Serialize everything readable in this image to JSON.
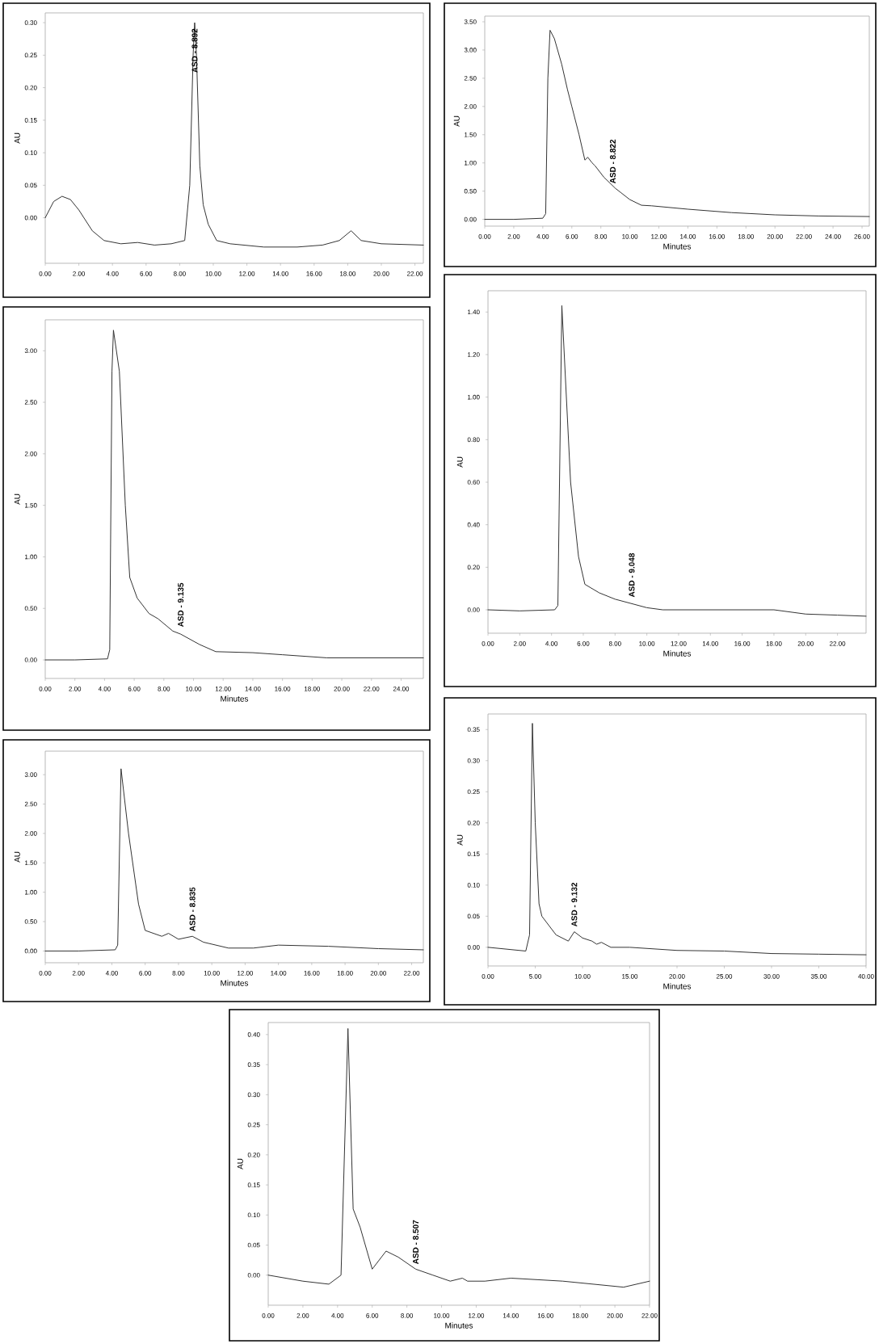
{
  "chart_data": [
    {
      "type": "line",
      "ylabel": "AU",
      "color": "#333333",
      "x": [
        0,
        0.5,
        1.0,
        1.5,
        2.0,
        2.8,
        3.5,
        4.5,
        5.5,
        6.5,
        7.5,
        8.3,
        8.6,
        8.8,
        8.892,
        9.0,
        9.2,
        9.4,
        9.7,
        10.2,
        11,
        13,
        15,
        16.5,
        17.5,
        18.2,
        18.8,
        20,
        22.5
      ],
      "values": [
        0.0,
        0.025,
        0.033,
        0.028,
        0.012,
        -0.02,
        -0.035,
        -0.04,
        -0.038,
        -0.042,
        -0.04,
        -0.035,
        0.05,
        0.25,
        0.3,
        0.25,
        0.08,
        0.02,
        -0.01,
        -0.035,
        -0.04,
        -0.045,
        -0.045,
        -0.042,
        -0.035,
        -0.02,
        -0.035,
        -0.04,
        -0.042
      ],
      "xlim": [
        0,
        22.5
      ],
      "ylim": [
        -0.07,
        0.315
      ],
      "xticks": [
        {
          "value": 0,
          "label": "0.00"
        },
        {
          "value": 2,
          "label": "2.00"
        },
        {
          "value": 4,
          "label": "4.00"
        },
        {
          "value": 6,
          "label": "6.00"
        },
        {
          "value": 8,
          "label": "8.00"
        },
        {
          "value": 10,
          "label": "10.00"
        },
        {
          "value": 12,
          "label": "12.00"
        },
        {
          "value": 14,
          "label": "14.00"
        },
        {
          "value": 16,
          "label": "16.00"
        },
        {
          "value": 18,
          "label": "18.00"
        },
        {
          "value": 20,
          "label": "20.00"
        },
        {
          "value": 22,
          "label": "22.00"
        }
      ],
      "yticks": [
        {
          "value": 0,
          "label": "0.00"
        },
        {
          "value": 0.05,
          "label": "0.05"
        },
        {
          "value": 0.1,
          "label": "0.10"
        },
        {
          "value": 0.15,
          "label": "0.15"
        },
        {
          "value": 0.2,
          "label": "0.20"
        },
        {
          "value": 0.25,
          "label": "0.25"
        },
        {
          "value": 0.3,
          "label": "0.30"
        }
      ],
      "annotations": [
        {
          "text": "ASD - 8.892",
          "x": 8.892,
          "y": 0.22
        }
      ]
    },
    {
      "type": "line",
      "xlabel": "Minutes",
      "ylabel": "AU",
      "color": "#333333",
      "x": [
        0,
        2,
        4.0,
        4.2,
        4.35,
        4.5,
        4.8,
        5.3,
        5.7,
        6.0,
        6.5,
        6.9,
        7.1,
        7.4,
        7.6,
        8.2,
        9.0,
        9.4,
        10,
        10.8,
        11.5,
        14,
        17,
        20,
        23,
        26.5
      ],
      "values": [
        0,
        0,
        0.02,
        0.1,
        2.5,
        3.35,
        3.2,
        2.75,
        2.3,
        2.0,
        1.5,
        1.05,
        1.1,
        1.0,
        0.95,
        0.75,
        0.55,
        0.47,
        0.35,
        0.25,
        0.24,
        0.18,
        0.12,
        0.08,
        0.06,
        0.05
      ],
      "xlim": [
        0,
        26.5
      ],
      "ylim": [
        -0.12,
        3.6
      ],
      "xticks": [
        {
          "value": 0,
          "label": "0.00"
        },
        {
          "value": 2,
          "label": "2.00"
        },
        {
          "value": 4,
          "label": "4.00"
        },
        {
          "value": 6,
          "label": "6.00"
        },
        {
          "value": 8,
          "label": "8.00"
        },
        {
          "value": 10,
          "label": "10.00"
        },
        {
          "value": 12,
          "label": "12.00"
        },
        {
          "value": 14,
          "label": "14.00"
        },
        {
          "value": 16,
          "label": "16.00"
        },
        {
          "value": 18,
          "label": "18.00"
        },
        {
          "value": 20,
          "label": "20.00"
        },
        {
          "value": 22,
          "label": "22.00"
        },
        {
          "value": 24,
          "label": "24.00"
        },
        {
          "value": 26,
          "label": "26.00"
        }
      ],
      "yticks": [
        {
          "value": 0,
          "label": "0.00"
        },
        {
          "value": 0.5,
          "label": "0.50"
        },
        {
          "value": 1,
          "label": "1.00"
        },
        {
          "value": 1.5,
          "label": "1.50"
        },
        {
          "value": 2,
          "label": "2.00"
        },
        {
          "value": 2.5,
          "label": "2.50"
        },
        {
          "value": 3,
          "label": "3.00"
        },
        {
          "value": 3.5,
          "label": "3.50"
        }
      ],
      "annotations": [
        {
          "text": "ASD - 8.822",
          "x": 8.822,
          "y": 0.6
        }
      ]
    },
    {
      "type": "line",
      "xlabel": "Minutes",
      "ylabel": "AU",
      "color": "#333333",
      "x": [
        0,
        2,
        4.2,
        4.35,
        4.5,
        4.6,
        5.0,
        5.4,
        5.7,
        6.2,
        7.0,
        7.6,
        8.6,
        9.135,
        10.4,
        11.5,
        14,
        16,
        19,
        22,
        25.5
      ],
      "values": [
        0,
        0,
        0.01,
        0.1,
        2.8,
        3.2,
        2.8,
        1.5,
        0.8,
        0.6,
        0.45,
        0.4,
        0.28,
        0.25,
        0.15,
        0.08,
        0.07,
        0.05,
        0.02,
        0.02,
        0.02
      ],
      "xlim": [
        0,
        25.5
      ],
      "ylim": [
        -0.18,
        3.3
      ],
      "xticks": [
        {
          "value": 0,
          "label": "0.00"
        },
        {
          "value": 2,
          "label": "2.00"
        },
        {
          "value": 4,
          "label": "4.00"
        },
        {
          "value": 6,
          "label": "6.00"
        },
        {
          "value": 8,
          "label": "8.00"
        },
        {
          "value": 10,
          "label": "10.00"
        },
        {
          "value": 12,
          "label": "12.00"
        },
        {
          "value": 14,
          "label": "14.00"
        },
        {
          "value": 16,
          "label": "16.00"
        },
        {
          "value": 18,
          "label": "18.00"
        },
        {
          "value": 20,
          "label": "20.00"
        },
        {
          "value": 22,
          "label": "22.00"
        },
        {
          "value": 24,
          "label": "24.00"
        }
      ],
      "yticks": [
        {
          "value": 0,
          "label": "0.00"
        },
        {
          "value": 0.5,
          "label": "0.50"
        },
        {
          "value": 1,
          "label": "1.00"
        },
        {
          "value": 1.5,
          "label": "1.50"
        },
        {
          "value": 2,
          "label": "2.00"
        },
        {
          "value": 2.5,
          "label": "2.50"
        },
        {
          "value": 3,
          "label": "3.00"
        }
      ],
      "annotations": [
        {
          "text": "ASD - 9.135",
          "x": 9.135,
          "y": 0.3
        }
      ]
    },
    {
      "type": "line",
      "xlabel": "Minutes",
      "ylabel": "AU",
      "color": "#333333",
      "x": [
        0,
        2,
        4.2,
        4.4,
        4.65,
        5.2,
        5.7,
        6.1,
        7,
        8,
        9,
        10,
        11,
        14,
        16,
        18,
        20,
        22,
        23.8
      ],
      "values": [
        0,
        -0.005,
        0,
        0.02,
        1.43,
        0.6,
        0.25,
        0.12,
        0.08,
        0.05,
        0.03,
        0.01,
        0,
        0,
        0,
        0,
        -0.02,
        -0.025,
        -0.03
      ],
      "xlim": [
        0,
        23.8
      ],
      "ylim": [
        -0.11,
        1.5
      ],
      "xticks": [
        {
          "value": 0,
          "label": "0.00"
        },
        {
          "value": 2,
          "label": "2.00"
        },
        {
          "value": 4,
          "label": "4.00"
        },
        {
          "value": 6,
          "label": "6.00"
        },
        {
          "value": 8,
          "label": "8.00"
        },
        {
          "value": 10,
          "label": "10.00"
        },
        {
          "value": 12,
          "label": "12.00"
        },
        {
          "value": 14,
          "label": "14.00"
        },
        {
          "value": 16,
          "label": "16.00"
        },
        {
          "value": 18,
          "label": "18.00"
        },
        {
          "value": 20,
          "label": "20.00"
        },
        {
          "value": 22,
          "label": "22.00"
        }
      ],
      "yticks": [
        {
          "value": 0,
          "label": "0.00"
        },
        {
          "value": 0.2,
          "label": "0.20"
        },
        {
          "value": 0.4,
          "label": "0.40"
        },
        {
          "value": 0.6,
          "label": "0.60"
        },
        {
          "value": 0.8,
          "label": "0.80"
        },
        {
          "value": 1,
          "label": "1.00"
        },
        {
          "value": 1.2,
          "label": "1.20"
        },
        {
          "value": 1.4,
          "label": "1.40"
        }
      ],
      "annotations": [
        {
          "text": "ASD - 9.048",
          "x": 9.048,
          "y": 0.05
        }
      ]
    },
    {
      "type": "line",
      "xlabel": "Minutes",
      "ylabel": "AU",
      "color": "#333333",
      "x": [
        0,
        2,
        4.2,
        4.35,
        4.55,
        5.0,
        5.6,
        6.0,
        7.0,
        7.4,
        8.0,
        8.835,
        9.5,
        11,
        12.5,
        14,
        17,
        20,
        22.7
      ],
      "values": [
        0,
        0,
        0.02,
        0.1,
        3.1,
        2.0,
        0.8,
        0.35,
        0.25,
        0.3,
        0.2,
        0.25,
        0.15,
        0.05,
        0.05,
        0.1,
        0.08,
        0.04,
        0.02
      ],
      "xlim": [
        0,
        22.7
      ],
      "ylim": [
        -0.2,
        3.4
      ],
      "xticks": [
        {
          "value": 0,
          "label": "0.00"
        },
        {
          "value": 2,
          "label": "2.00"
        },
        {
          "value": 4,
          "label": "4.00"
        },
        {
          "value": 6,
          "label": "6.00"
        },
        {
          "value": 8,
          "label": "8.00"
        },
        {
          "value": 10,
          "label": "10.00"
        },
        {
          "value": 12,
          "label": "12.00"
        },
        {
          "value": 14,
          "label": "14.00"
        },
        {
          "value": 16,
          "label": "16.00"
        },
        {
          "value": 18,
          "label": "18.00"
        },
        {
          "value": 20,
          "label": "20.00"
        },
        {
          "value": 22,
          "label": "22.00"
        }
      ],
      "yticks": [
        {
          "value": 0,
          "label": "0.00"
        },
        {
          "value": 0.5,
          "label": "0.50"
        },
        {
          "value": 1,
          "label": "1.00"
        },
        {
          "value": 1.5,
          "label": "1.50"
        },
        {
          "value": 2,
          "label": "2.00"
        },
        {
          "value": 2.5,
          "label": "2.50"
        },
        {
          "value": 3,
          "label": "3.00"
        }
      ],
      "annotations": [
        {
          "text": "ASD - 8.835",
          "x": 8.835,
          "y": 0.3
        }
      ]
    },
    {
      "type": "line",
      "xlabel": "Minutes",
      "ylabel": "AU",
      "color": "#333333",
      "x": [
        0,
        2,
        4,
        4.4,
        4.7,
        5.0,
        5.4,
        5.7,
        6.2,
        7.2,
        8.5,
        9.132,
        10,
        11,
        11.5,
        12,
        13,
        15,
        20,
        25,
        30,
        35,
        40
      ],
      "values": [
        0,
        -0.003,
        -0.006,
        0.02,
        0.36,
        0.2,
        0.07,
        0.05,
        0.04,
        0.02,
        0.01,
        0.025,
        0.015,
        0.01,
        0.005,
        0.008,
        0.0,
        0.0,
        -0.005,
        -0.006,
        -0.01,
        -0.011,
        -0.012
      ],
      "xlim": [
        0,
        40
      ],
      "ylim": [
        -0.03,
        0.375
      ],
      "xticks": [
        {
          "value": 0,
          "label": "0.00"
        },
        {
          "value": 5,
          "label": "5.00"
        },
        {
          "value": 10,
          "label": "10.00"
        },
        {
          "value": 15,
          "label": "15.00"
        },
        {
          "value": 20,
          "label": "20.00"
        },
        {
          "value": 25,
          "label": "25.00"
        },
        {
          "value": 30,
          "label": "30.00"
        },
        {
          "value": 35,
          "label": "35.00"
        },
        {
          "value": 40,
          "label": "40.00"
        }
      ],
      "yticks": [
        {
          "value": 0,
          "label": "0.00"
        },
        {
          "value": 0.05,
          "label": "0.05"
        },
        {
          "value": 0.1,
          "label": "0.10"
        },
        {
          "value": 0.15,
          "label": "0.15"
        },
        {
          "value": 0.2,
          "label": "0.20"
        },
        {
          "value": 0.25,
          "label": "0.25"
        },
        {
          "value": 0.3,
          "label": "0.30"
        },
        {
          "value": 0.35,
          "label": "0.35"
        }
      ],
      "annotations": [
        {
          "text": "ASD - 9.132",
          "x": 9.132,
          "y": 0.03
        }
      ]
    },
    {
      "type": "line",
      "xlabel": "Minutes",
      "ylabel": "AU",
      "color": "#333333",
      "x": [
        0,
        2,
        3.5,
        4.2,
        4.6,
        4.9,
        5.3,
        6.0,
        6.8,
        7.5,
        8.507,
        9.5,
        10.5,
        11.2,
        11.5,
        12.5,
        14,
        17,
        20.5,
        22
      ],
      "values": [
        0,
        -0.01,
        -0.015,
        0.0,
        0.41,
        0.11,
        0.08,
        0.01,
        0.04,
        0.03,
        0.01,
        0.0,
        -0.01,
        -0.005,
        -0.01,
        -0.01,
        -0.005,
        -0.01,
        -0.02,
        -0.01
      ],
      "xlim": [
        0,
        22
      ],
      "ylim": [
        -0.05,
        0.42
      ],
      "xticks": [
        {
          "value": 0,
          "label": "0.00"
        },
        {
          "value": 2,
          "label": "2.00"
        },
        {
          "value": 4,
          "label": "4.00"
        },
        {
          "value": 6,
          "label": "6.00"
        },
        {
          "value": 8,
          "label": "8.00"
        },
        {
          "value": 10,
          "label": "10.00"
        },
        {
          "value": 12,
          "label": "12.00"
        },
        {
          "value": 14,
          "label": "14.00"
        },
        {
          "value": 16,
          "label": "16.00"
        },
        {
          "value": 18,
          "label": "18.00"
        },
        {
          "value": 20,
          "label": "20.00"
        },
        {
          "value": 22,
          "label": "22.00"
        }
      ],
      "yticks": [
        {
          "value": 0,
          "label": "0.00"
        },
        {
          "value": 0.05,
          "label": "0.05"
        },
        {
          "value": 0.1,
          "label": "0.10"
        },
        {
          "value": 0.15,
          "label": "0.15"
        },
        {
          "value": 0.2,
          "label": "0.20"
        },
        {
          "value": 0.25,
          "label": "0.25"
        },
        {
          "value": 0.3,
          "label": "0.30"
        },
        {
          "value": 0.35,
          "label": "0.35"
        },
        {
          "value": 0.4,
          "label": "0.40"
        }
      ],
      "annotations": [
        {
          "text": "ASD - 8.507",
          "x": 8.507,
          "y": 0.015
        }
      ]
    }
  ]
}
